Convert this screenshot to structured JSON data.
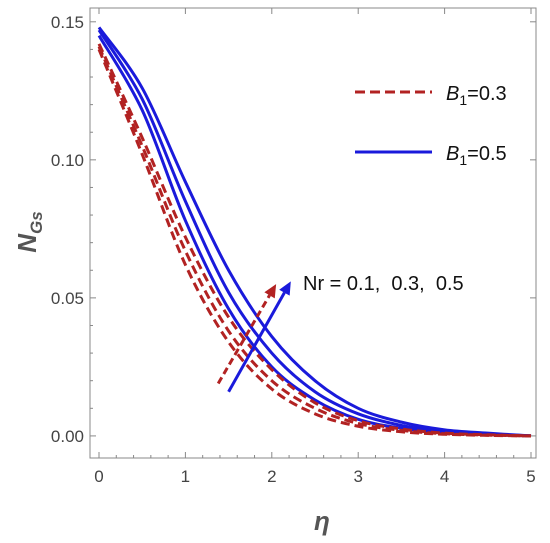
{
  "chart_data": {
    "type": "line",
    "xlabel": "η",
    "ylabel_main": "N",
    "ylabel_sub": "Gs",
    "xlim": [
      0,
      5
    ],
    "ylim": [
      -0.008,
      0.155
    ],
    "x_ticks": [
      0,
      1,
      2,
      3,
      4,
      5
    ],
    "x_tick_labels": [
      "0",
      "1",
      "2",
      "3",
      "4",
      "5"
    ],
    "y_ticks": [
      0.0,
      0.05,
      0.1,
      0.15
    ],
    "y_tick_labels": [
      "0.00",
      "0.05",
      "0.10",
      "0.15"
    ],
    "grid": false,
    "legend_position": "top-right",
    "legend": [
      {
        "sym": "B",
        "sub": "1",
        "value_text": "=0.3",
        "style": "dashed",
        "color": "#b22222"
      },
      {
        "sym": "B",
        "sub": "1",
        "value_text": "=0.5",
        "style": "solid",
        "color": "#1a1adb"
      }
    ],
    "annotation": "Nr = 0.1,  0.3,  0.5",
    "series": [
      {
        "group": "B1=0.3",
        "nr": 0.1,
        "style": "dashed",
        "color": "#b22222",
        "x": [
          0,
          0.5,
          1,
          1.5,
          2,
          2.5,
          3,
          3.5,
          4,
          4.5,
          5
        ],
        "y": [
          0.14,
          0.102,
          0.062,
          0.034,
          0.017,
          0.008,
          0.0035,
          0.0015,
          0.0006,
          0.0002,
          0.0
        ]
      },
      {
        "group": "B1=0.3",
        "nr": 0.3,
        "style": "dashed",
        "color": "#b22222",
        "x": [
          0,
          0.5,
          1,
          1.5,
          2,
          2.5,
          3,
          3.5,
          4,
          4.5,
          5
        ],
        "y": [
          0.141,
          0.105,
          0.067,
          0.038,
          0.02,
          0.01,
          0.0045,
          0.002,
          0.0008,
          0.0003,
          0.0
        ]
      },
      {
        "group": "B1=0.3",
        "nr": 0.5,
        "style": "dashed",
        "color": "#b22222",
        "x": [
          0,
          0.5,
          1,
          1.5,
          2,
          2.5,
          3,
          3.5,
          4,
          4.5,
          5
        ],
        "y": [
          0.142,
          0.108,
          0.072,
          0.043,
          0.024,
          0.012,
          0.0055,
          0.0025,
          0.001,
          0.0004,
          0.0
        ]
      },
      {
        "group": "B1=0.5",
        "nr": 0.1,
        "style": "solid",
        "color": "#1a1adb",
        "x": [
          0,
          0.5,
          1,
          1.5,
          2,
          2.5,
          3,
          3.5,
          4,
          4.5,
          5
        ],
        "y": [
          0.145,
          0.118,
          0.078,
          0.046,
          0.025,
          0.013,
          0.006,
          0.0028,
          0.0012,
          0.0005,
          0.0
        ]
      },
      {
        "group": "B1=0.5",
        "nr": 0.3,
        "style": "solid",
        "color": "#1a1adb",
        "x": [
          0,
          0.5,
          1,
          1.5,
          2,
          2.5,
          3,
          3.5,
          4,
          4.5,
          5
        ],
        "y": [
          0.147,
          0.122,
          0.085,
          0.052,
          0.03,
          0.016,
          0.008,
          0.0038,
          0.0017,
          0.0007,
          0.0
        ]
      },
      {
        "group": "B1=0.5",
        "nr": 0.5,
        "style": "solid",
        "color": "#1a1adb",
        "x": [
          0,
          0.5,
          1,
          1.5,
          2,
          2.5,
          3,
          3.5,
          4,
          4.5,
          5
        ],
        "y": [
          0.148,
          0.126,
          0.092,
          0.06,
          0.036,
          0.02,
          0.01,
          0.005,
          0.0022,
          0.001,
          0.0
        ]
      }
    ],
    "arrows": [
      {
        "color": "#b22222",
        "style": "dashed",
        "from": [
          1.38,
          0.019
        ],
        "to": [
          2.05,
          0.055
        ]
      },
      {
        "color": "#1a1adb",
        "style": "solid",
        "from": [
          1.5,
          0.016
        ],
        "to": [
          2.22,
          0.056
        ]
      }
    ]
  }
}
